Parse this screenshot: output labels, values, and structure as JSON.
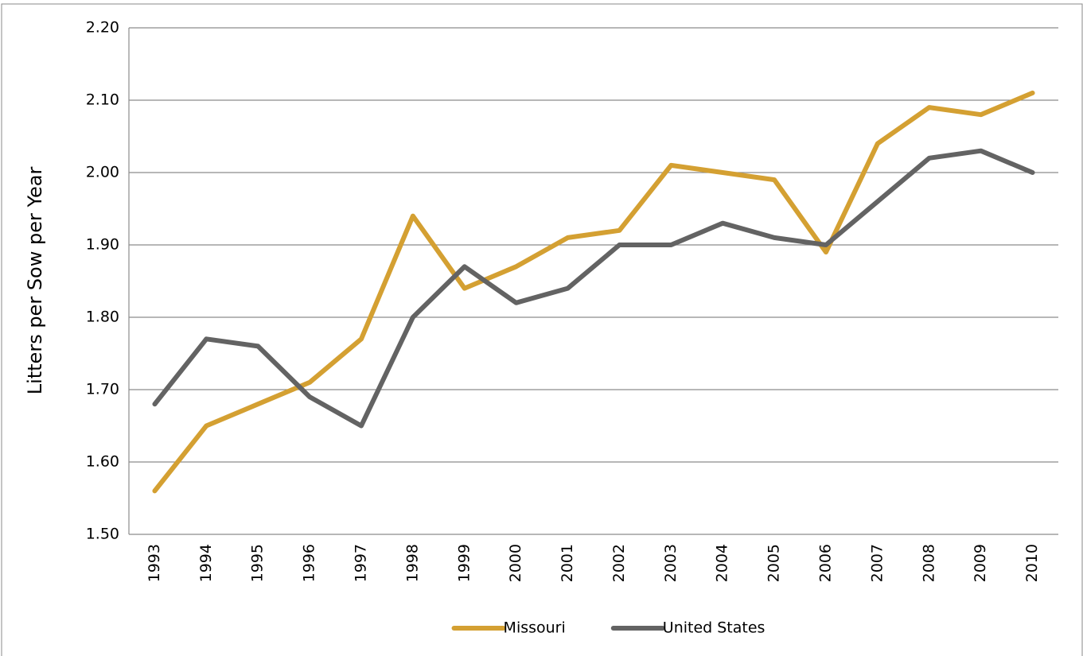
{
  "chart_data": {
    "type": "line",
    "y_axis_label": "Litters per Sow per Year",
    "categories": [
      "1993",
      "1994",
      "1995",
      "1996",
      "1997",
      "1998",
      "1999",
      "2000",
      "2001",
      "2002",
      "2003",
      "2004",
      "2005",
      "2006",
      "2007",
      "2008",
      "2009",
      "2010"
    ],
    "series": [
      {
        "name": "Missouri",
        "color": "#d4a032",
        "values": [
          1.56,
          1.65,
          1.68,
          1.71,
          1.77,
          1.94,
          1.84,
          1.87,
          1.91,
          1.92,
          2.01,
          2.0,
          1.99,
          1.89,
          2.04,
          2.09,
          2.08,
          2.11
        ]
      },
      {
        "name": "United States",
        "color": "#636363",
        "values": [
          1.68,
          1.77,
          1.76,
          1.69,
          1.65,
          1.8,
          1.87,
          1.82,
          1.84,
          1.9,
          1.9,
          1.93,
          1.91,
          1.9,
          1.96,
          2.02,
          2.03,
          2.0
        ]
      }
    ],
    "ylim": [
      1.5,
      2.2
    ],
    "yticks": [
      {
        "value": 1.5,
        "label": "1.50"
      },
      {
        "value": 1.6,
        "label": "1.60"
      },
      {
        "value": 1.7,
        "label": "1.70"
      },
      {
        "value": 1.8,
        "label": "1.80"
      },
      {
        "value": 1.9,
        "label": "1.90"
      },
      {
        "value": 2.0,
        "label": "2.00"
      },
      {
        "value": 2.1,
        "label": "2.10"
      },
      {
        "value": 2.2,
        "label": "2.20"
      }
    ],
    "grid": true,
    "legend": "bottom"
  }
}
